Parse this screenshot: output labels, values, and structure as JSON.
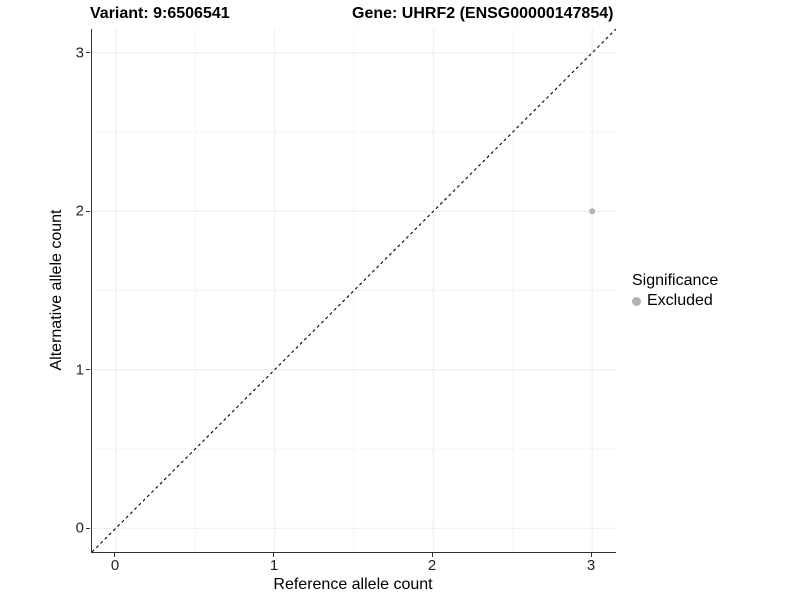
{
  "header": {
    "variant_title": "Variant: 9:6506541",
    "gene_title": "Gene: UHRF2 (ENSG00000147854)"
  },
  "axes": {
    "x_label": "Reference allele count",
    "y_label": "Alternative allele count",
    "x_tick_labels": [
      "0",
      "1",
      "2",
      "3"
    ],
    "y_tick_labels": [
      "0",
      "1",
      "2",
      "3"
    ]
  },
  "legend": {
    "title": "Significance",
    "items": [
      {
        "label": "Excluded",
        "marker_color": "#b3b3b3"
      }
    ]
  },
  "colors": {
    "axis_line": "#333333",
    "grid_major": "#ececec",
    "grid_minor": "#f4f4f4",
    "point_gray": "#b3b3b3",
    "dashed_line": "#000000"
  },
  "chart_data": {
    "type": "scatter",
    "title": "Variant: 9:6506541 | Gene: UHRF2 (ENSG00000147854)",
    "xlabel": "Reference allele count",
    "ylabel": "Alternative allele count",
    "xlim": [
      -0.15,
      3.15
    ],
    "ylim": [
      -0.15,
      3.15
    ],
    "x_ticks": [
      0,
      1,
      2,
      3
    ],
    "y_ticks": [
      0,
      1,
      2,
      3
    ],
    "grid_minor_ticks": [
      0.5,
      1.5,
      2.5
    ],
    "grid": "on",
    "legend_position": "right",
    "series": [
      {
        "name": "Excluded",
        "color": "#b3b3b3",
        "point_radius": 3,
        "points": [
          [
            3,
            2
          ]
        ]
      }
    ],
    "reference_line": {
      "type": "identity",
      "style": "dashed",
      "color": "#000000",
      "from": [
        -0.15,
        -0.15
      ],
      "to": [
        3.15,
        3.15
      ]
    }
  }
}
